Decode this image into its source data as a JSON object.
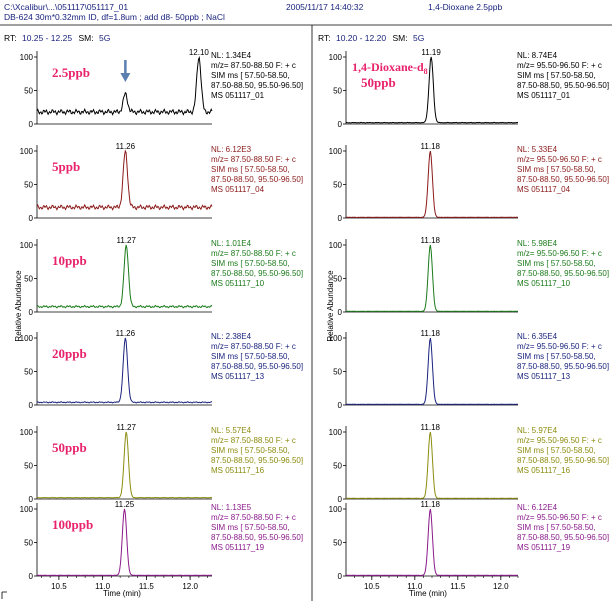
{
  "header": {
    "file_path": "C:\\Xcalibur\\...\\051117\\051117_01",
    "column_info": "DB-624 30m*0.32mm ID, df=1.8um ; add d8- 50ppb ; NaCl",
    "datetime": "2005/11/17 14:40:32",
    "sample": "1,4-Dioxane 2.5ppb"
  },
  "panels": [
    {
      "name": "left",
      "rt_prefix": "RT:",
      "rt_range": "10.25 - 12.25",
      "sm_prefix": "SM:",
      "sm_value": "5G",
      "compound_label": "",
      "compound_subscript": "",
      "x_axis_label": "Time (min)",
      "y_axis_label": "Relative Abundance"
    },
    {
      "name": "right",
      "rt_prefix": "RT:",
      "rt_range": "10.20 - 12.20",
      "sm_prefix": "SM:",
      "sm_value": "5G",
      "compound_label": "1,4-Dioxane-d",
      "compound_subscript": "8",
      "x_axis_label": "Time (min)",
      "y_axis_label": "Relative Abundance"
    }
  ],
  "chart_data": [
    {
      "type": "line",
      "panel": "left",
      "xlabel": "Time (min)",
      "ylabel": "Relative Abundance",
      "xlim": [
        10.25,
        12.25
      ],
      "ylim": [
        0,
        100
      ],
      "x_ticks": [
        10.5,
        11.0,
        11.5,
        12.0
      ],
      "x_tick_labels": [
        "10.5",
        "11.0",
        "11.5",
        "12.0"
      ],
      "y_ticks": [
        0,
        50,
        100
      ],
      "y_tick_labels": [
        "0",
        "50",
        "100"
      ],
      "traces": [
        {
          "concentration": "2.5ppb",
          "color": "#000000",
          "peak_rt": "11.26",
          "peak_label": "12.10",
          "nl": "NL: 1.34E4",
          "mz": "m/z= 87.50-88.50 F: + c",
          "sim1": "SIM ms [ 57.50-58.50,",
          "sim2": "87.50-88.50, 95.50-96.50]",
          "ms": "MS 051117_01",
          "arrow": true,
          "peaks": [
            {
              "x": 11.26,
              "y": 45
            },
            {
              "x": 12.1,
              "y": 100
            }
          ],
          "baseline": 18
        },
        {
          "concentration": "5ppb",
          "color": "#8b1a1a",
          "peak_label": "11.26",
          "nl": "NL: 6.12E3",
          "mz": "m/z= 87.50-88.50 F: + c",
          "sim1": "SIM ms [ 57.50-58.50,",
          "sim2": "87.50-88.50, 95.50-96.50]",
          "ms": "MS 051117_04",
          "peaks": [
            {
              "x": 11.26,
              "y": 100
            }
          ],
          "baseline": 16
        },
        {
          "concentration": "10ppb",
          "color": "#1a7a1a",
          "peak_label": "11.27",
          "nl": "NL: 1.01E4",
          "mz": "m/z= 87.50-88.50 F: + c",
          "sim1": "SIM ms [ 57.50-58.50,",
          "sim2": "87.50-88.50, 95.50-96.50]",
          "ms": "MS 051117_10",
          "peaks": [
            {
              "x": 11.27,
              "y": 100
            }
          ],
          "baseline": 8
        },
        {
          "concentration": "20ppb",
          "color": "#1a237e",
          "peak_label": "11.26",
          "nl": "NL: 2.38E4",
          "mz": "m/z= 87.50-88.50 F: + c",
          "sim1": "SIM ms [ 57.50-58.50,",
          "sim2": "87.50-88.50, 95.50-96.50]",
          "ms": "MS 051117_13",
          "peaks": [
            {
              "x": 11.26,
              "y": 100
            }
          ],
          "baseline": 4
        },
        {
          "concentration": "50ppb",
          "color": "#8c8c10",
          "peak_label": "11.27",
          "nl": "NL: 5.57E4",
          "mz": "m/z= 87.50-88.50 F: + c",
          "sim1": "SIM ms [ 57.50-58.50,",
          "sim2": "87.50-88.50, 95.50-96.50]",
          "ms": "MS 051117_16",
          "peaks": [
            {
              "x": 11.27,
              "y": 100
            }
          ],
          "baseline": 2
        },
        {
          "concentration": "100ppb",
          "color": "#8b1a8b",
          "peak_label": "11.25",
          "nl": "NL: 1.13E5",
          "mz": "m/z= 87.50-88.50 F: + c",
          "sim1": "SIM ms [ 57.50-58.50,",
          "sim2": "87.50-88.50, 95.50-96.50]",
          "ms": "MS 051117_19",
          "peaks": [
            {
              "x": 11.25,
              "y": 100
            }
          ],
          "baseline": 1
        }
      ]
    },
    {
      "type": "line",
      "panel": "right",
      "xlabel": "Time (min)",
      "ylabel": "Relative Abundance",
      "xlim": [
        10.2,
        12.2
      ],
      "ylim": [
        0,
        100
      ],
      "x_ticks": [
        10.5,
        11.0,
        11.5,
        12.0
      ],
      "x_tick_labels": [
        "10.5",
        "11.0",
        "11.5",
        "12.0"
      ],
      "y_ticks": [
        0,
        50,
        100
      ],
      "y_tick_labels": [
        "0",
        "50",
        "100"
      ],
      "traces": [
        {
          "concentration": "50ppb",
          "color": "#000000",
          "peak_label": "11.19",
          "nl": "NL: 8.74E4",
          "mz": "m/z= 95.50-96.50 F: + c",
          "sim1": "SIM ms [ 57.50-58.50,",
          "sim2": "87.50-88.50, 95.50-96.50]",
          "ms": "MS 051117_01",
          "peaks": [
            {
              "x": 11.19,
              "y": 100
            }
          ],
          "baseline": 2
        },
        {
          "concentration": "",
          "color": "#8b1a1a",
          "peak_label": "11.18",
          "nl": "NL: 5.33E4",
          "mz": "m/z= 95.50-96.50 F: + c",
          "sim1": "SIM ms [ 57.50-58.50,",
          "sim2": "87.50-88.50, 95.50-96.50]",
          "ms": "MS 051117_04",
          "peaks": [
            {
              "x": 11.18,
              "y": 100
            }
          ],
          "baseline": 1
        },
        {
          "concentration": "",
          "color": "#1a7a1a",
          "peak_label": "11.18",
          "nl": "NL: 5.98E4",
          "mz": "m/z= 95.50-96.50 F: + c",
          "sim1": "SIM ms [ 57.50-58.50,",
          "sim2": "87.50-88.50, 95.50-96.50]",
          "ms": "MS 051117_10",
          "peaks": [
            {
              "x": 11.18,
              "y": 100
            }
          ],
          "baseline": 1
        },
        {
          "concentration": "",
          "color": "#1a237e",
          "peak_label": "11.18",
          "nl": "NL: 6.35E4",
          "mz": "m/z= 95.50-96.50 F: + c",
          "sim1": "SIM ms [ 57.50-58.50,",
          "sim2": "87.50-88.50, 95.50-96.50]",
          "ms": "MS 051117_13",
          "peaks": [
            {
              "x": 11.18,
              "y": 100
            }
          ],
          "baseline": 1
        },
        {
          "concentration": "",
          "color": "#8c8c10",
          "peak_label": "11.18",
          "nl": "NL: 5.97E4",
          "mz": "m/z= 95.50-96.50 F: + c",
          "sim1": "SIM ms [ 57.50-58.50,",
          "sim2": "87.50-88.50, 95.50-96.50]",
          "ms": "MS 051117_16",
          "peaks": [
            {
              "x": 11.18,
              "y": 100
            }
          ],
          "baseline": 1
        },
        {
          "concentration": "",
          "color": "#8b1a8b",
          "peak_label": "11.18",
          "nl": "NL: 6.12E4",
          "mz": "m/z= 95.50-96.50 F: + c",
          "sim1": "SIM ms [ 57.50-58.50,",
          "sim2": "87.50-88.50, 95.50-96.50]",
          "ms": "MS 051117_19",
          "peaks": [
            {
              "x": 11.18,
              "y": 100
            }
          ],
          "baseline": 1
        }
      ]
    }
  ]
}
